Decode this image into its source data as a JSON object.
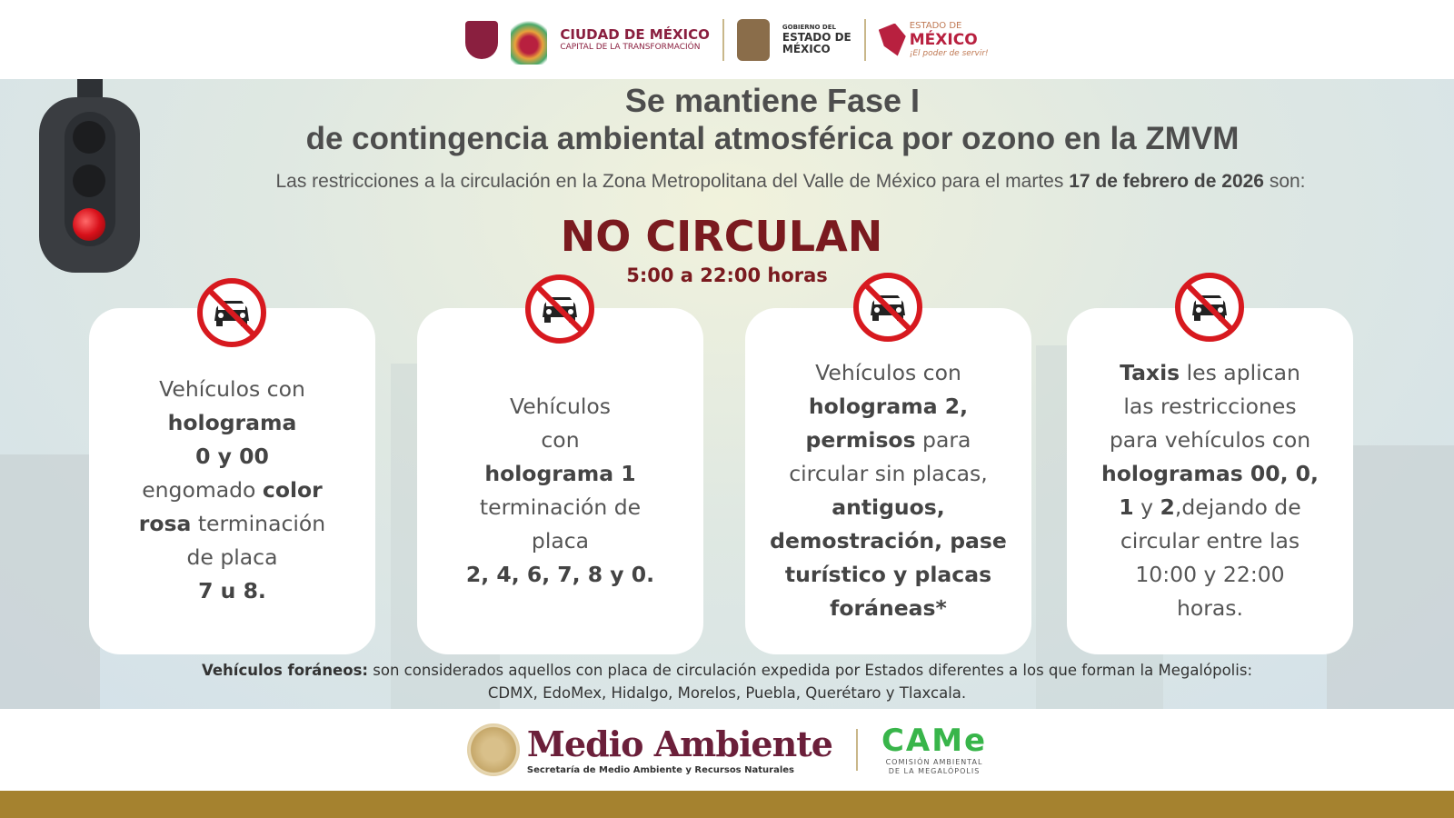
{
  "header": {
    "cdmx": {
      "name": "CIUDAD DE MÉXICO",
      "tagline": "CAPITAL DE LA TRANSFORMACIÓN"
    },
    "gobierno": {
      "line1": "GOBIERNO DEL",
      "line2": "ESTADO DE",
      "line3": "MÉXICO"
    },
    "edomex": {
      "line1": "ESTADO DE",
      "line2": "MÉXICO",
      "slogan": "¡El poder de servir!"
    }
  },
  "main": {
    "title_line1": "Se mantiene Fase I",
    "title_line2": "de contingencia ambiental atmosférica por ozono en la ZMVM",
    "subtitle_pre": "Las restricciones a la circulación en la Zona Metropolitana del Valle de México para el martes ",
    "subtitle_date": "17 de febrero de 2026",
    "subtitle_post": " son:",
    "headline": "NO CIRCULAN",
    "hours": "5:00 a 22:00 horas",
    "cards": [
      {
        "icon": "no-car-icon",
        "lines": [
          [
            {
              "t": "Vehículos con"
            }
          ],
          [
            {
              "t": "holograma",
              "b": true
            }
          ],
          [
            {
              "t": "0 y 00",
              "b": true
            }
          ],
          [
            {
              "t": "engomado "
            },
            {
              "t": "color",
              "b": true
            }
          ],
          [
            {
              "t": "rosa",
              "b": true
            },
            {
              "t": " terminación"
            }
          ],
          [
            {
              "t": "de placa"
            }
          ],
          [
            {
              "t": "7 u 8.",
              "b": true
            }
          ]
        ]
      },
      {
        "icon": "no-car-icon",
        "lines": [
          [
            {
              "t": "Vehículos"
            }
          ],
          [
            {
              "t": "con"
            }
          ],
          [
            {
              "t": "holograma 1",
              "b": true
            }
          ],
          [
            {
              "t": "terminación de"
            }
          ],
          [
            {
              "t": "placa"
            }
          ],
          [
            {
              "t": "2, 4, 6, 7, 8 y 0.",
              "b": true
            }
          ]
        ]
      },
      {
        "icon": "no-car-icon",
        "lines": [
          [
            {
              "t": "Vehículos con"
            }
          ],
          [
            {
              "t": "holograma 2,",
              "b": true
            }
          ],
          [
            {
              "t": "permisos",
              "b": true
            },
            {
              "t": " para"
            }
          ],
          [
            {
              "t": "circular sin placas,"
            }
          ],
          [
            {
              "t": "antiguos,",
              "b": true
            }
          ],
          [
            {
              "t": "demostración, pase",
              "b": true
            }
          ],
          [
            {
              "t": "turístico y placas",
              "b": true
            }
          ],
          [
            {
              "t": "foráneas*",
              "b": true
            }
          ]
        ]
      },
      {
        "icon": "no-car-icon",
        "lines": [
          [
            {
              "t": "Taxis",
              "b": true
            },
            {
              "t": " les aplican"
            }
          ],
          [
            {
              "t": "las restricciones"
            }
          ],
          [
            {
              "t": "para vehículos con"
            }
          ],
          [
            {
              "t": "hologramas 00, 0,",
              "b": true
            }
          ],
          [
            {
              "t": "1",
              "b": true
            },
            {
              "t": " y "
            },
            {
              "t": "2",
              "b": true
            },
            {
              "t": ",dejando de"
            }
          ],
          [
            {
              "t": "circular entre las"
            }
          ],
          [
            {
              "t": "10:00 y 22:00"
            }
          ],
          [
            {
              "t": "horas."
            }
          ]
        ]
      }
    ],
    "footnote_label": "Vehículos foráneos:",
    "footnote_text": " son considerados aquellos con placa de circulación expedida por Estados diferentes a los que forman la Megalópolis:",
    "footnote_line2": "CDMX, EdoMex, Hidalgo, Morelos, Puebla, Querétaro y Tlaxcala."
  },
  "footer": {
    "medio_ambiente": "Medio Ambiente",
    "medio_sub": "Secretaría de Medio Ambiente y Recursos Naturales",
    "came_logo": "CAMe",
    "came_line1": "COMISIÓN AMBIENTAL",
    "came_line2": "DE LA MEGALÓPOLIS"
  },
  "colors": {
    "accent": "#7a1a1f",
    "brand": "#6b1f3a",
    "gold": "#a5822f",
    "no_sign": "#d7191f"
  }
}
